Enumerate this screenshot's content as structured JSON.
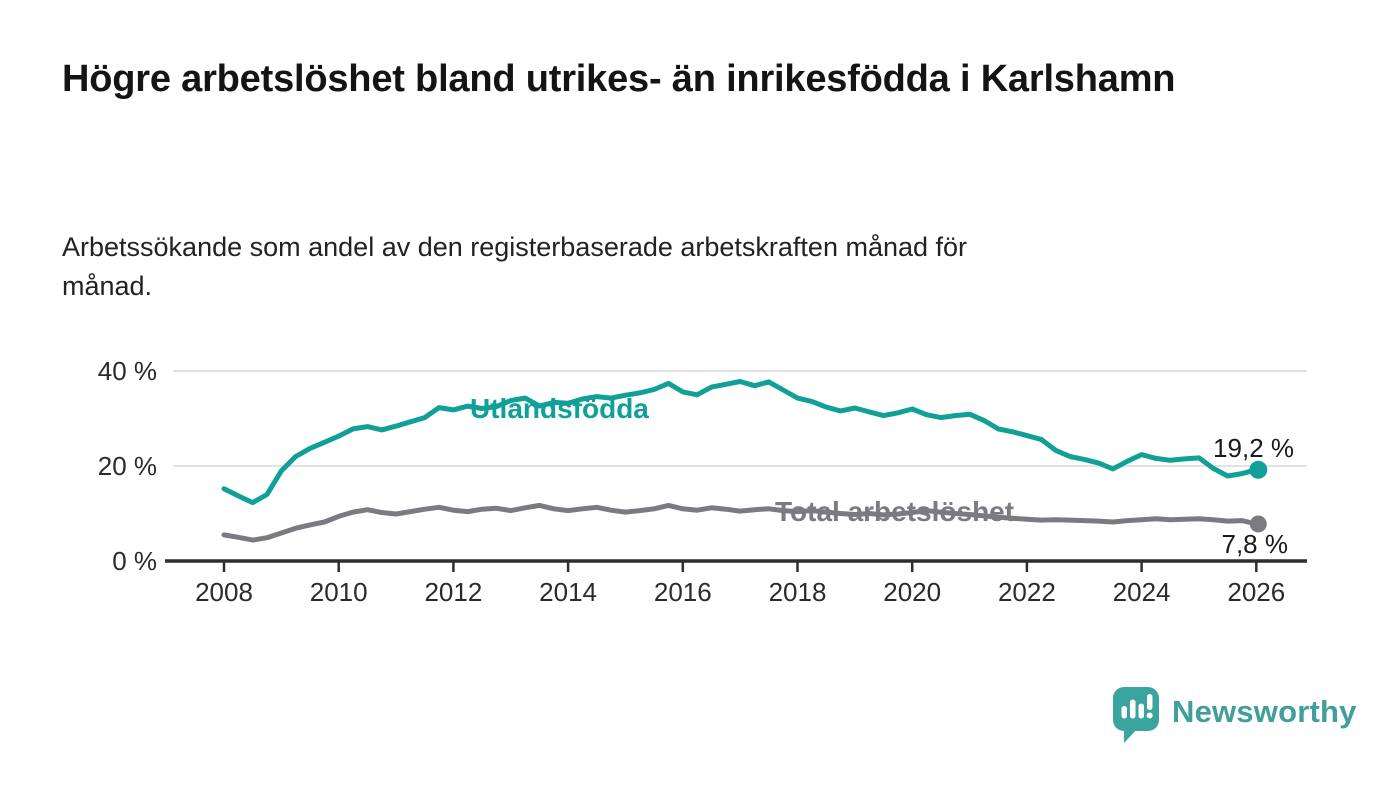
{
  "chart_data": {
    "type": "line",
    "title": "Högre arbetslöshet bland utrikes- än inrikesfödda i Karlshamn",
    "subtitle": "Arbetssökande som andel av den registerbaserade arbetskraften månad för månad.",
    "x_axis": {
      "start": 2008,
      "step": 0.25,
      "unit": "år",
      "ticks": [
        2008,
        2010,
        2012,
        2014,
        2016,
        2018,
        2020,
        2022,
        2024,
        2026
      ],
      "range": [
        2007.5,
        2026.9
      ]
    },
    "y_axis": {
      "unit": "%",
      "range": [
        0,
        42
      ],
      "grid": true,
      "ticks": [
        {
          "label": "40 %",
          "value": 40
        },
        {
          "label": "20 %",
          "value": 20
        },
        {
          "label": "0 %",
          "value": 0
        }
      ]
    },
    "legend_position": "inline-labels",
    "series": [
      {
        "name": "Utlandsfödda",
        "color": "#10a098",
        "end_label": "19,2 %",
        "end_value": 19.2,
        "values": [
          15.2,
          13.7,
          12.3,
          14.0,
          19.0,
          22.0,
          23.7,
          25.0,
          26.3,
          27.8,
          28.3,
          27.6,
          28.4,
          29.3,
          30.2,
          32.3,
          31.8,
          32.6,
          32.1,
          32.5,
          33.8,
          34.3,
          32.6,
          33.4,
          33.2,
          34.1,
          34.6,
          34.3,
          34.9,
          35.4,
          36.1,
          37.4,
          35.6,
          35.0,
          36.6,
          37.2,
          37.8,
          36.9,
          37.7,
          36.0,
          34.3,
          33.6,
          32.4,
          31.6,
          32.2,
          31.4,
          30.6,
          31.2,
          32.0,
          30.8,
          30.2,
          30.6,
          30.9,
          29.6,
          27.8,
          27.2,
          26.4,
          25.6,
          23.3,
          22.0,
          21.4,
          20.6,
          19.4,
          21.0,
          22.4,
          21.6,
          21.2,
          21.5,
          21.7,
          19.5,
          17.9,
          18.4,
          19.2
        ]
      },
      {
        "name": "Total arbetslöshet",
        "color": "#7b7a80",
        "end_label": "7,8 %",
        "end_value": 7.8,
        "values": [
          5.5,
          5.0,
          4.4,
          4.9,
          5.9,
          6.9,
          7.6,
          8.2,
          9.4,
          10.3,
          10.8,
          10.2,
          9.9,
          10.4,
          10.9,
          11.3,
          10.7,
          10.4,
          10.9,
          11.1,
          10.6,
          11.2,
          11.7,
          11.0,
          10.6,
          11.0,
          11.3,
          10.7,
          10.3,
          10.6,
          11.0,
          11.7,
          11.0,
          10.7,
          11.2,
          10.9,
          10.5,
          10.8,
          11.0,
          10.6,
          10.4,
          10.6,
          10.3,
          10.0,
          9.8,
          10.0,
          9.7,
          9.9,
          10.2,
          10.6,
          10.3,
          10.0,
          9.8,
          9.5,
          9.2,
          9.0,
          8.8,
          8.6,
          8.7,
          8.6,
          8.5,
          8.4,
          8.2,
          8.5,
          8.7,
          8.9,
          8.7,
          8.8,
          8.9,
          8.7,
          8.4,
          8.5,
          7.8
        ]
      }
    ],
    "colors": {
      "grid": "#d8d8d8",
      "axis": "#2e2e2e",
      "annotation_text": "#1a1a1a"
    }
  },
  "footer": {
    "brand": "Newsworthy",
    "logo_icon": "bar-chart-speech-bubble-icon",
    "brand_color": "#419e9b"
  }
}
